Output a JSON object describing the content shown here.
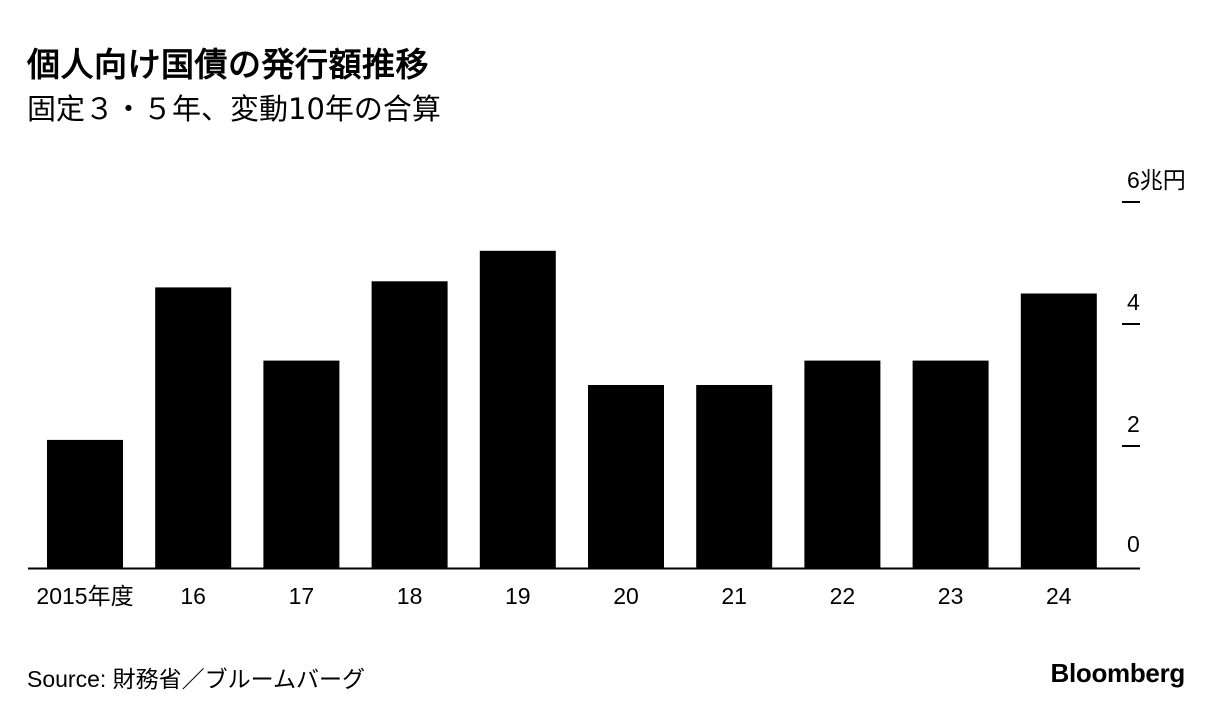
{
  "title": "個人向け国債の発行額推移",
  "subtitle": "固定３・５年、変動10年の合算",
  "source": "Source: 財務省／ブルームバーグ",
  "brand": "Bloomberg",
  "colors": {
    "bar": "#000000",
    "background": "#ffffff",
    "text": "#000000"
  },
  "chart_data": {
    "type": "bar",
    "categories": [
      "2015年度",
      "16",
      "17",
      "18",
      "19",
      "20",
      "21",
      "22",
      "23",
      "24"
    ],
    "values": [
      2.1,
      4.6,
      3.4,
      4.7,
      5.2,
      3.0,
      3.0,
      3.4,
      3.4,
      4.5
    ],
    "ylim": [
      0,
      6
    ],
    "yticks": [
      0,
      2,
      4,
      6
    ],
    "ytick_labels": [
      "0",
      "2",
      "4",
      "6兆円"
    ],
    "y_axis_position": "right",
    "grid": false
  }
}
